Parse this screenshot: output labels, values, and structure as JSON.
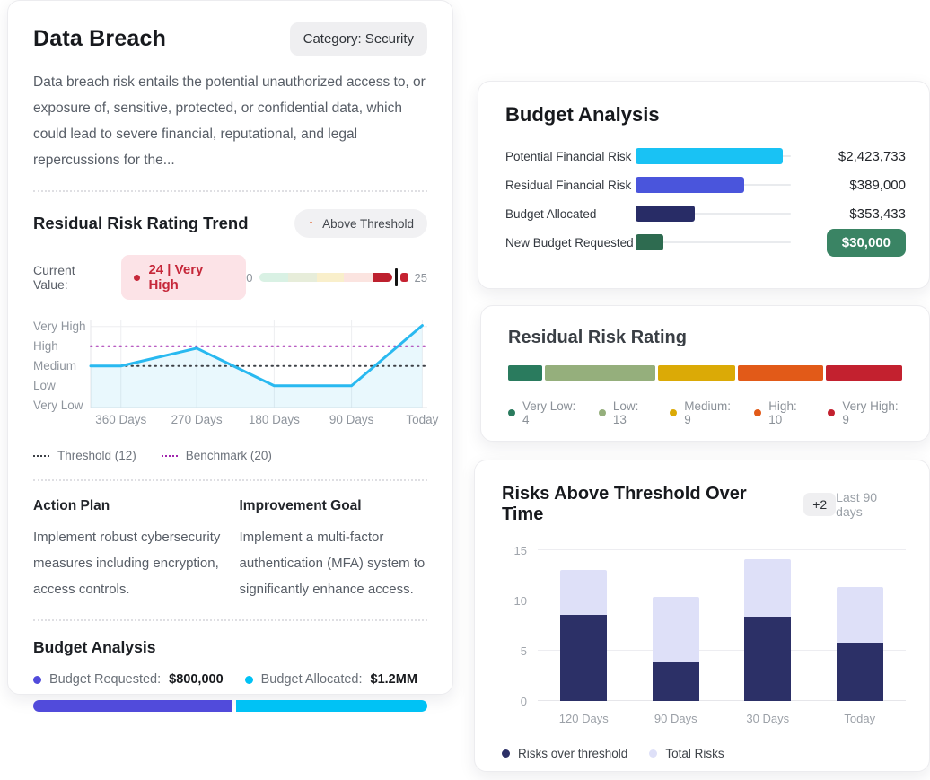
{
  "risk_card": {
    "title": "Data Breach",
    "category_badge": "Category: Security",
    "description": "Data breach risk entails the potential unauthorized access to, or exposure of, sensitive, protected, or confidential data, which could lead to severe financial, reputational, and legal repercussions for the...",
    "trend": {
      "title": "Residual Risk Rating Trend",
      "status_badge": {
        "arrow": "↑",
        "label": "Above Threshold"
      },
      "current_value_label": "Current Value:",
      "current_value": "24 | Very High",
      "gauge": {
        "min": "0",
        "max": "25",
        "segments": [
          {
            "name": "very-low-zone",
            "color": "#d9f1e4",
            "flex": 20
          },
          {
            "name": "low-zone",
            "color": "#e7edda",
            "flex": 20
          },
          {
            "name": "medium-zone",
            "color": "#f9efcb",
            "flex": 19
          },
          {
            "name": "high-zone",
            "color": "#fbe4e0",
            "flex": 20
          },
          {
            "name": "current-zone",
            "color": "#bd202e",
            "flex": 13
          }
        ],
        "marker_color": "#141414",
        "cap_color": "#c52231"
      }
    },
    "action_plan": {
      "title": "Action Plan",
      "body": "Implement robust cybersecurity measures including encryption, access controls."
    },
    "improvement_goal": {
      "title": "Improvement Goal",
      "body": "Implement a multi-factor authentication (MFA) system to significantly enhance access."
    },
    "budget": {
      "title": "Budget Analysis",
      "legend": [
        {
          "label": "Budget Requested:",
          "value": "$800,000",
          "color": "#514bdb"
        },
        {
          "label": "Budget Allocated:",
          "value": "$1.2MM",
          "color": "#00c2f5"
        }
      ],
      "bar": [
        {
          "name": "requested-segment",
          "color": "#514bdb",
          "pct": 51
        },
        {
          "name": "allocated-segment",
          "color": "#00c2f5",
          "pct": 49
        }
      ]
    }
  },
  "risks_card": {
    "delta_badge": "+2",
    "period": "Last 90 days"
  },
  "chart_data": [
    {
      "id": "residual-risk-trend",
      "type": "line",
      "title": "Residual Risk Rating Trend",
      "current_value": 24,
      "scale_max": 25,
      "y_levels": [
        "Very Low",
        "Low",
        "Medium",
        "High",
        "Very High"
      ],
      "x_ticks": [
        {
          "x": 0.09,
          "label": "360 Days"
        },
        {
          "x": 0.315,
          "label": "270 Days"
        },
        {
          "x": 0.545,
          "label": "180 Days"
        },
        {
          "x": 0.775,
          "label": "90 Days"
        },
        {
          "x": 0.985,
          "label": "Today"
        }
      ],
      "points": [
        {
          "x": 0,
          "level": 2,
          "rating": 12
        },
        {
          "x": 0.09,
          "level": 2,
          "rating": 12
        },
        {
          "x": 0.315,
          "level": 2.9,
          "rating": 19
        },
        {
          "x": 0.545,
          "level": 1,
          "rating": 8
        },
        {
          "x": 0.775,
          "level": 1,
          "rating": 8
        },
        {
          "x": 0.985,
          "level": 4.05,
          "rating": 24
        }
      ],
      "threshold": {
        "label": "Threshold (12)",
        "value": 12,
        "level": 2,
        "color": "#3c4046"
      },
      "benchmark": {
        "label": "Benchmark (20)",
        "value": 20,
        "level": 3,
        "color": "#a126ae"
      },
      "line_color": "#29b9f0",
      "fill_color": "rgba(41,185,240,0.10)",
      "level_min": -0.1,
      "level_max": 4.35,
      "legend_position": "bottom",
      "grid": true
    },
    {
      "id": "budget-analysis-bars",
      "type": "bar",
      "orientation": "horizontal",
      "title": "Budget Analysis",
      "rows": [
        {
          "label": "Potential Financial Risk",
          "value": "$2,423,733",
          "amount": 2423733,
          "color": "#19c2f4",
          "pct": 95,
          "pill": false
        },
        {
          "label": "Residual Financial Risk",
          "value": "$389,000",
          "amount": 389000,
          "color": "#4a55dc",
          "pct": 70,
          "pill": false
        },
        {
          "label": "Budget Allocated",
          "value": "$353,433",
          "amount": 353433,
          "color": "#282c66",
          "pct": 38,
          "pill": false
        },
        {
          "label": "New Budget Requested",
          "value": "$30,000",
          "amount": 30000,
          "color": "#2e6b50",
          "pct": 18,
          "pill": true,
          "pill_bg": "#3a8464"
        }
      ]
    },
    {
      "id": "residual-risk-rating-distribution",
      "type": "bar",
      "variant": "segmented-strip",
      "title": "Residual Risk Rating",
      "items": [
        {
          "label": "Very Low",
          "count": 4,
          "color": "#2a7b5e"
        },
        {
          "label": "Low",
          "count": 13,
          "color": "#95af7c"
        },
        {
          "label": "Medium",
          "count": 9,
          "color": "#dbaa06"
        },
        {
          "label": "High",
          "count": 10,
          "color": "#e25a18"
        },
        {
          "label": "Very High",
          "count": 9,
          "color": "#c3212f"
        }
      ]
    },
    {
      "id": "risks-above-threshold-over-time",
      "type": "bar",
      "stacked": true,
      "title": "Risks Above Threshold Over Time",
      "categories": [
        "120 Days",
        "90 Days",
        "30 Days",
        "Today"
      ],
      "series": [
        {
          "name": "Risks over threshold",
          "color": "#2c3067",
          "values": [
            8.6,
            3.9,
            8.4,
            5.8
          ]
        },
        {
          "name": "Total Risks",
          "color": "#dee0f8",
          "values": [
            13,
            10.4,
            14.1,
            11.3
          ]
        }
      ],
      "total_is_overall_height": true,
      "yticks": [
        0,
        5,
        10,
        15
      ],
      "ylim": [
        0,
        15
      ],
      "grid": true,
      "legend_position": "bottom"
    }
  ]
}
